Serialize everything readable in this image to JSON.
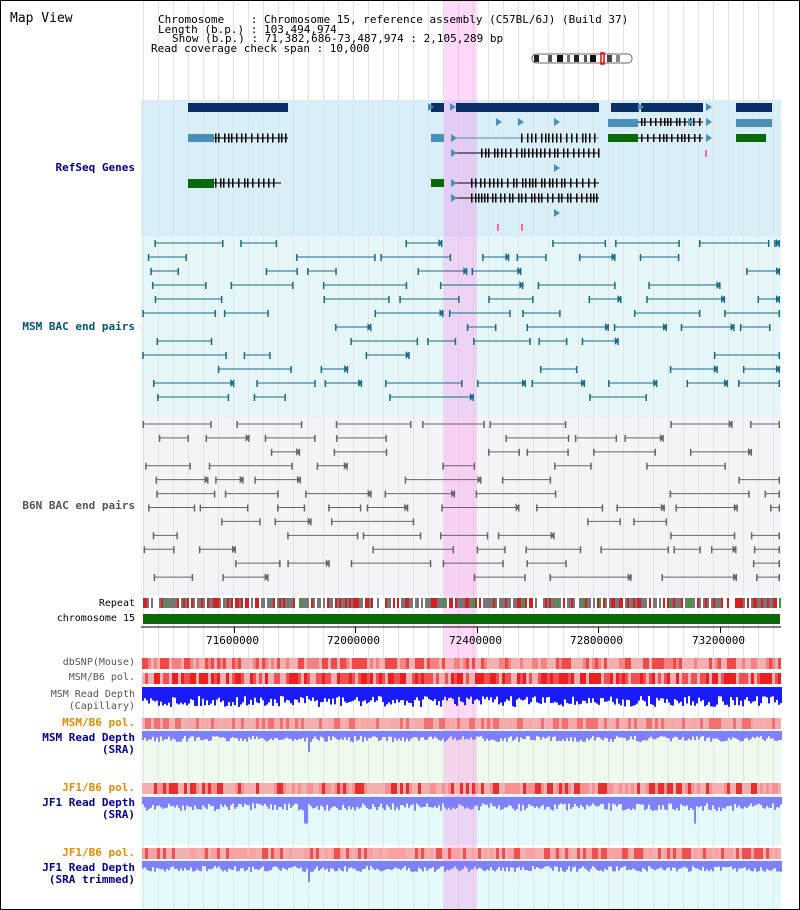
{
  "title": "Map View",
  "header": {
    "lines": [
      "Chromosome    : Chromosome 15, reference assembly (C57BL/6J) (Build 37)",
      "Length (b.p.) : 103,494,974",
      "Show (b.p.) : 71,382,686-73,487,974 : 2,105,289 bp",
      "Read coverage check span : 10,000"
    ]
  },
  "tracks": {
    "refseq": "RefSeq Genes",
    "msm_bac": "MSM BAC end pairs",
    "b6n_bac": "B6N BAC end pairs",
    "repeat": "Repeat",
    "chromosome": "chromosome 15",
    "dbsnp": "dbSNP(Mouse)",
    "msm_b6_pol": "MSM/B6 pol.",
    "msm_read_depth_cap_1": "MSM Read Depth",
    "msm_read_depth_cap_2": "(Capillary)",
    "msm_b6_pol_2": "MSM/B6 pol.",
    "msm_read_depth_sra_1": "MSM Read Depth",
    "msm_read_depth_sra_2": "(SRA)",
    "jf1_b6_pol": "JF1/B6 pol.",
    "jf1_read_depth_1": "JF1 Read Depth",
    "jf1_read_depth_2": "(SRA)",
    "jf1_b6_pol_2": "JF1/B6 pol.",
    "jf1_read_depth_trim_1": "JF1 Read Depth",
    "jf1_read_depth_trim_2": "(SRA trimmed)"
  },
  "ruler": {
    "ticks": [
      "71600000",
      "72000000",
      "72400000",
      "72800000",
      "73200000"
    ]
  },
  "colors": {
    "refseq_bg": "#dbeffa",
    "msm_bg": "#e8f7fa",
    "b6n_bg": "#f3f3f7",
    "highlight": "#ffb3f0",
    "gene_navy": "#0b2e66",
    "gene_teal": "#4a8fb8",
    "gene_green": "#0a6a0a",
    "chrom_green": "#0a6a0a",
    "msm_pair": "#1a6a8a",
    "b6n_pair": "#666666",
    "depth_blue": "#1a1aff",
    "depth_light": "#8080ff"
  }
}
